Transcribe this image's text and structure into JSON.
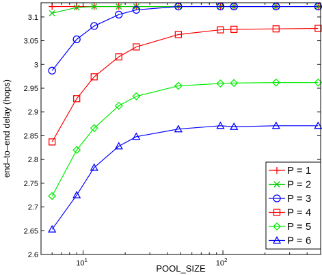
{
  "chart_data": {
    "type": "line",
    "title": "",
    "xlabel": "POOL_SIZE",
    "ylabel": "end–to–end delay (hops)",
    "xscale": "log",
    "xlim": [
      5,
      500
    ],
    "ylim": [
      2.6,
      3.13
    ],
    "x_ticks": [
      {
        "value": 10,
        "base": "10",
        "exp": "1"
      },
      {
        "value": 100,
        "base": "10",
        "exp": "2"
      }
    ],
    "y_ticks": [
      2.6,
      2.65,
      2.7,
      2.75,
      2.8,
      2.85,
      2.9,
      2.95,
      3,
      3.05,
      3.1
    ],
    "y_tick_labels": [
      "2.6",
      "2.65",
      "2.7",
      "2.75",
      "2.8",
      "2.85",
      "2.9",
      "2.95",
      "3",
      "3.05",
      "3.1"
    ],
    "grid": false,
    "legend_position": "bottom-right",
    "x": [
      6,
      9,
      12,
      18,
      24,
      48,
      96,
      120,
      240,
      480
    ],
    "series": [
      {
        "name": "P = 1",
        "color": "#ff0000",
        "marker": "plus",
        "values": [
          3.122,
          3.122,
          3.122,
          3.122,
          3.122,
          3.122,
          3.122,
          3.122,
          3.122,
          3.122
        ]
      },
      {
        "name": "P = 2",
        "color": "#00cc00",
        "marker": "x",
        "values": [
          3.108,
          3.12,
          3.122,
          3.122,
          3.122,
          3.122,
          3.122,
          3.122,
          3.122,
          3.122
        ]
      },
      {
        "name": "P = 3",
        "color": "#0000ff",
        "marker": "circle",
        "values": [
          2.987,
          3.053,
          3.081,
          3.105,
          3.115,
          3.122,
          3.122,
          3.122,
          3.122,
          3.122
        ]
      },
      {
        "name": "P = 4",
        "color": "#ff0000",
        "marker": "square",
        "values": [
          2.837,
          2.928,
          2.974,
          3.016,
          3.037,
          3.063,
          3.073,
          3.074,
          3.075,
          3.076
        ]
      },
      {
        "name": "P = 5",
        "color": "#00ee00",
        "marker": "diamond",
        "values": [
          2.723,
          2.82,
          2.866,
          2.913,
          2.933,
          2.955,
          2.96,
          2.961,
          2.962,
          2.962
        ]
      },
      {
        "name": "P = 6",
        "color": "#0000ff",
        "marker": "triangle",
        "values": [
          2.653,
          2.725,
          2.783,
          2.828,
          2.848,
          2.864,
          2.871,
          2.869,
          2.871,
          2.871
        ]
      }
    ]
  }
}
